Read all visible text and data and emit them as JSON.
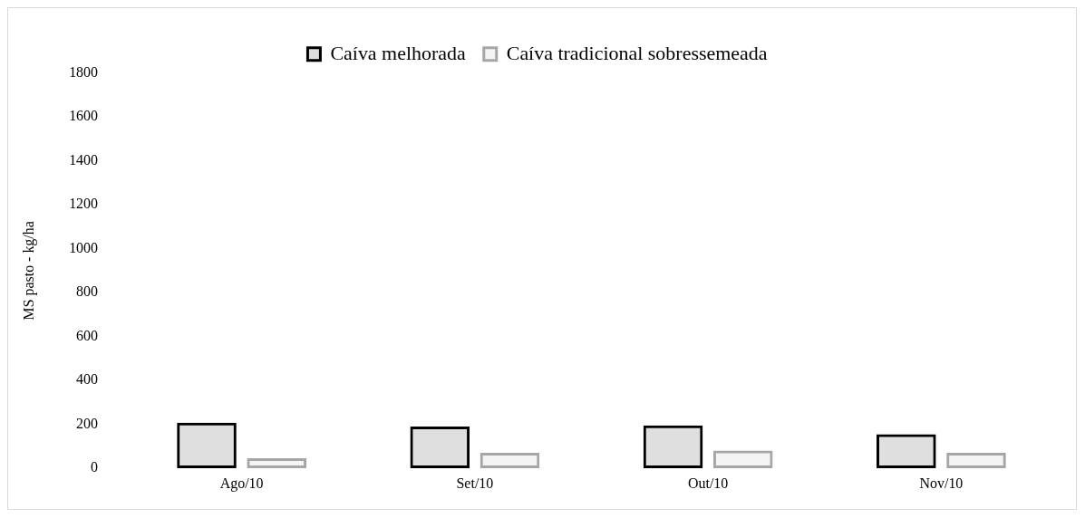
{
  "chart_data": {
    "type": "bar",
    "ylabel": "MS pasto - kg/ha",
    "categories": [
      "Ago/10",
      "Set/10",
      "Out/10",
      "Nov/10"
    ],
    "series": [
      {
        "name": "Caíva melhorada",
        "color": "#000000",
        "values": [
          207,
          190,
          195,
          155
        ]
      },
      {
        "name": "Caíva tradicional sobressemeada",
        "color": "#a6a6a6",
        "values": [
          45,
          70,
          80,
          70
        ]
      }
    ],
    "ylim": [
      0,
      1800
    ],
    "yticks": [
      0,
      200,
      400,
      600,
      800,
      1000,
      1200,
      1400,
      1600,
      1800
    ],
    "grid": false,
    "legend": "top"
  }
}
